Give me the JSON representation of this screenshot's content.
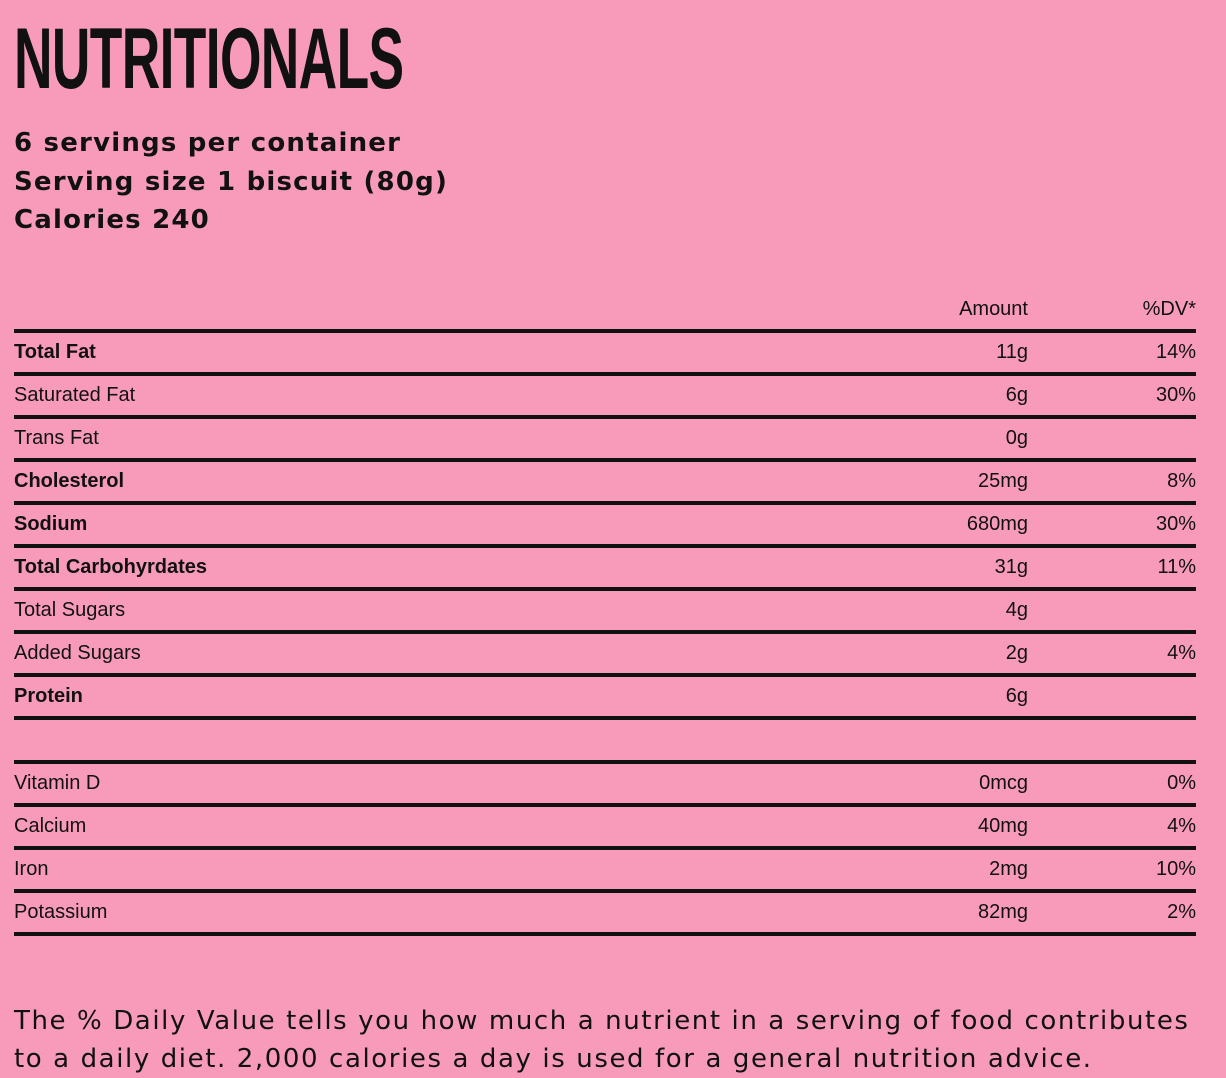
{
  "title": "NUTRITIONALS",
  "summary": {
    "servings": "6 servings per container",
    "serving_size": "Serving size 1 biscuit (80g)",
    "calories": "Calories 240"
  },
  "table": {
    "headers": {
      "amount": "Amount",
      "dv": "%DV*"
    },
    "rows": [
      {
        "name": "Total Fat",
        "amount": "11g",
        "dv": "14%",
        "bold": true
      },
      {
        "name": "Saturated Fat",
        "amount": "6g",
        "dv": "30%",
        "bold": false
      },
      {
        "name": "Trans Fat",
        "amount": "0g",
        "dv": "",
        "bold": false
      },
      {
        "name": "Cholesterol",
        "amount": "25mg",
        "dv": "8%",
        "bold": true
      },
      {
        "name": "Sodium",
        "amount": "680mg",
        "dv": "30%",
        "bold": true
      },
      {
        "name": "Total Carbohyrdates",
        "amount": "31g",
        "dv": "11%",
        "bold": true
      },
      {
        "name": "Total Sugars",
        "amount": "4g",
        "dv": "",
        "bold": false
      },
      {
        "name": "Added Sugars",
        "amount": "2g",
        "dv": "4%",
        "bold": false
      },
      {
        "name": "Protein",
        "amount": "6g",
        "dv": "",
        "bold": true
      }
    ],
    "vitamins": [
      {
        "name": "Vitamin D",
        "amount": "0mcg",
        "dv": "0%"
      },
      {
        "name": "Calcium",
        "amount": "40mg",
        "dv": "4%"
      },
      {
        "name": "Iron",
        "amount": "2mg",
        "dv": "10%"
      },
      {
        "name": "Potassium",
        "amount": "82mg",
        "dv": "2%"
      }
    ]
  },
  "footnote": "The % Daily Value tells you how much a nutrient in a serving of food contributes to a daily diet. 2,000 calories a day is used for a general nutrition advice.",
  "colors": {
    "background": "#f89bba",
    "text": "#111111"
  }
}
